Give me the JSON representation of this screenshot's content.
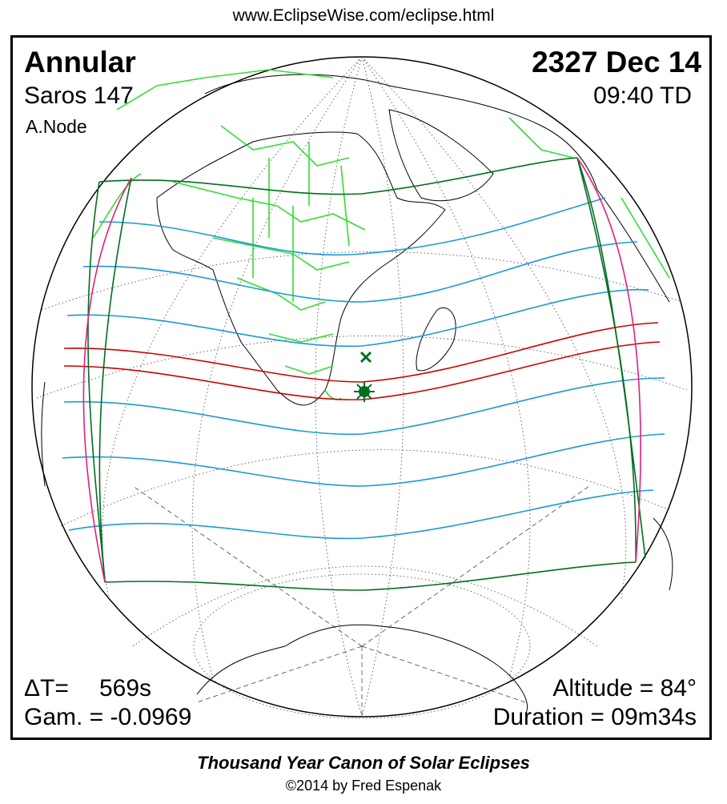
{
  "header": {
    "url": "www.EclipseWise.com/eclipse.html"
  },
  "eclipse": {
    "type": "Annular",
    "date": "2327 Dec 14",
    "saros": "Saros 147",
    "time": "09:40 TD",
    "node": "A.Node",
    "delta_t_label": "ΔT=",
    "delta_t_value": "569s",
    "gamma": "Gam. = -0.0969",
    "altitude": "Altitude = 84°",
    "duration": "Duration = 09m34s"
  },
  "footer": {
    "title": "Thousand Year Canon of Solar Eclipses",
    "copyright": "©2014 by Fred Espenak"
  },
  "colors": {
    "annular_path": "#cc0000",
    "penumbral_limits": "#1a9ad6",
    "outer_limits": "#006e1f",
    "rise_set_curves": "#e0207a",
    "borders": "#33dd33",
    "coastlines": "#000000",
    "greatest_eclipse_marker": "#006e1f"
  },
  "legend_icons": {
    "greatest_eclipse": "star-burst-icon",
    "greatest_duration": "cross-x-icon"
  }
}
